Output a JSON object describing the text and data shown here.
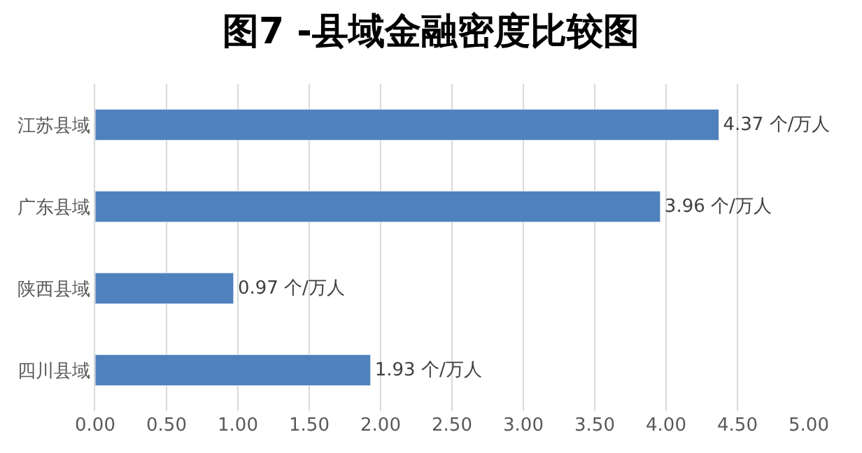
{
  "chart_data": {
    "type": "bar",
    "orientation": "horizontal",
    "title": "图7 -县域金融密度比较图",
    "categories": [
      "江苏县域",
      "广东县域",
      "陕西县域",
      "四川县域"
    ],
    "values": [
      4.37,
      3.96,
      0.97,
      1.93
    ],
    "value_labels": [
      "4.37 个/万人",
      "3.96 个/万人",
      "0.97 个/万人",
      "1.93 个/万人"
    ],
    "color": "#4f81bd",
    "xlim": [
      0,
      5
    ],
    "xticks": [
      {
        "value": 0,
        "label": "0.00"
      },
      {
        "value": 0.5,
        "label": "0.50"
      },
      {
        "value": 1,
        "label": "1.00"
      },
      {
        "value": 1.5,
        "label": "1.50"
      },
      {
        "value": 2,
        "label": "2.00"
      },
      {
        "value": 2.5,
        "label": "2.50"
      },
      {
        "value": 3,
        "label": "3.00"
      },
      {
        "value": 3.5,
        "label": "3.50"
      },
      {
        "value": 4,
        "label": "4.00"
      },
      {
        "value": 4.5,
        "label": "4.50"
      },
      {
        "value": 5,
        "label": "5.00"
      }
    ],
    "grid": "x",
    "legend": false
  }
}
